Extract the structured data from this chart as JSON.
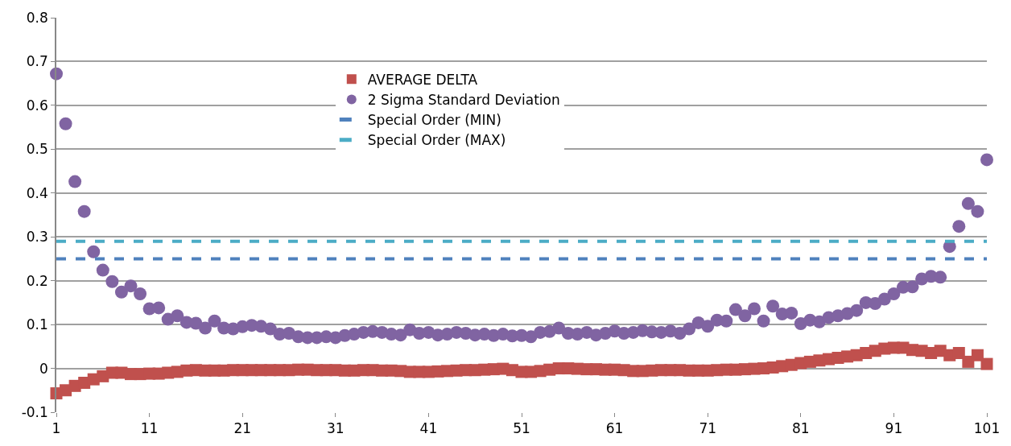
{
  "chart_data": {
    "type": "scatter",
    "x": [
      1,
      2,
      3,
      4,
      5,
      6,
      7,
      8,
      9,
      10,
      11,
      12,
      13,
      14,
      15,
      16,
      17,
      18,
      19,
      20,
      21,
      22,
      23,
      24,
      25,
      26,
      27,
      28,
      29,
      30,
      31,
      32,
      33,
      34,
      35,
      36,
      37,
      38,
      39,
      40,
      41,
      42,
      43,
      44,
      45,
      46,
      47,
      48,
      49,
      50,
      51,
      52,
      53,
      54,
      55,
      56,
      57,
      58,
      59,
      60,
      61,
      62,
      63,
      64,
      65,
      66,
      67,
      68,
      69,
      70,
      71,
      72,
      73,
      74,
      75,
      76,
      77,
      78,
      79,
      80,
      81,
      82,
      83,
      84,
      85,
      86,
      87,
      88,
      89,
      90,
      91,
      92,
      93,
      94,
      95,
      96,
      97,
      98,
      99,
      100,
      101
    ],
    "series": [
      {
        "name": "AVERAGE DELTA",
        "marker": "square",
        "color": "#c0504d",
        "values": [
          -0.057,
          -0.05,
          -0.04,
          -0.033,
          -0.025,
          -0.018,
          -0.01,
          -0.01,
          -0.013,
          -0.013,
          -0.012,
          -0.012,
          -0.01,
          -0.008,
          -0.005,
          -0.004,
          -0.005,
          -0.005,
          -0.005,
          -0.004,
          -0.004,
          -0.004,
          -0.004,
          -0.004,
          -0.004,
          -0.004,
          -0.003,
          -0.003,
          -0.004,
          -0.004,
          -0.004,
          -0.005,
          -0.005,
          -0.004,
          -0.004,
          -0.005,
          -0.005,
          -0.006,
          -0.008,
          -0.008,
          -0.008,
          -0.007,
          -0.006,
          -0.005,
          -0.004,
          -0.004,
          -0.003,
          -0.002,
          -0.001,
          -0.004,
          -0.008,
          -0.008,
          -0.006,
          -0.003,
          0,
          0,
          -0.001,
          -0.002,
          -0.002,
          -0.003,
          -0.003,
          -0.004,
          -0.006,
          -0.006,
          -0.005,
          -0.004,
          -0.004,
          -0.004,
          -0.005,
          -0.005,
          -0.005,
          -0.004,
          -0.003,
          -0.003,
          -0.002,
          -0.001,
          0,
          0.002,
          0.005,
          0.008,
          0.012,
          0.015,
          0.018,
          0.021,
          0.024,
          0.027,
          0.03,
          0.035,
          0.04,
          0.045,
          0.047,
          0.047,
          0.042,
          0.04,
          0.035,
          0.04,
          0.03,
          0.035,
          0.015,
          0.03,
          0.01
        ]
      },
      {
        "name": "2 Sigma Standard Deviation",
        "marker": "circle",
        "color": "#8064a2",
        "values": [
          0.672,
          0.558,
          0.426,
          0.358,
          0.266,
          0.224,
          0.198,
          0.174,
          0.188,
          0.17,
          0.136,
          0.138,
          0.112,
          0.12,
          0.105,
          0.103,
          0.092,
          0.108,
          0.092,
          0.09,
          0.095,
          0.098,
          0.096,
          0.09,
          0.078,
          0.08,
          0.072,
          0.07,
          0.07,
          0.072,
          0.07,
          0.075,
          0.078,
          0.082,
          0.084,
          0.082,
          0.078,
          0.076,
          0.088,
          0.08,
          0.082,
          0.076,
          0.078,
          0.082,
          0.08,
          0.076,
          0.078,
          0.075,
          0.078,
          0.074,
          0.075,
          0.072,
          0.082,
          0.084,
          0.092,
          0.08,
          0.078,
          0.082,
          0.076,
          0.08,
          0.085,
          0.08,
          0.082,
          0.086,
          0.083,
          0.082,
          0.085,
          0.08,
          0.09,
          0.104,
          0.096,
          0.11,
          0.108,
          0.134,
          0.12,
          0.136,
          0.108,
          0.142,
          0.124,
          0.126,
          0.102,
          0.11,
          0.106,
          0.116,
          0.12,
          0.125,
          0.132,
          0.15,
          0.148,
          0.158,
          0.17,
          0.185,
          0.186,
          0.204,
          0.21,
          0.208,
          0.278,
          0.324,
          0.376,
          0.358,
          0.476
        ]
      },
      {
        "name": "Special Order (MIN)",
        "type": "line",
        "line_style": "dashed",
        "color": "#4f81bd",
        "values": [
          0.25,
          0.25,
          0.25,
          0.25,
          0.25,
          0.25,
          0.25,
          0.25,
          0.25,
          0.25,
          0.25,
          0.25,
          0.25,
          0.25,
          0.25,
          0.25,
          0.25,
          0.25,
          0.25,
          0.25,
          0.25,
          0.25,
          0.25,
          0.25,
          0.25,
          0.25,
          0.25,
          0.25,
          0.25,
          0.25,
          0.25,
          0.25,
          0.25,
          0.25,
          0.25,
          0.25,
          0.25,
          0.25,
          0.25,
          0.25,
          0.25,
          0.25,
          0.25,
          0.25,
          0.25,
          0.25,
          0.25,
          0.25,
          0.25,
          0.25,
          0.25,
          0.25,
          0.25,
          0.25,
          0.25,
          0.25,
          0.25,
          0.25,
          0.25,
          0.25,
          0.25,
          0.25,
          0.25,
          0.25,
          0.25,
          0.25,
          0.25,
          0.25,
          0.25,
          0.25,
          0.25,
          0.25,
          0.25,
          0.25,
          0.25,
          0.25,
          0.25,
          0.25,
          0.25,
          0.25,
          0.25,
          0.25,
          0.25,
          0.25,
          0.25,
          0.25,
          0.25,
          0.25,
          0.25,
          0.25,
          0.25,
          0.25,
          0.25,
          0.25,
          0.25,
          0.25,
          0.25,
          0.25,
          0.25,
          0.25,
          0.25
        ]
      },
      {
        "name": "Special Order (MAX)",
        "type": "line",
        "line_style": "dashed",
        "color": "#4bacc6",
        "values": [
          0.29,
          0.29,
          0.29,
          0.29,
          0.29,
          0.29,
          0.29,
          0.29,
          0.29,
          0.29,
          0.29,
          0.29,
          0.29,
          0.29,
          0.29,
          0.29,
          0.29,
          0.29,
          0.29,
          0.29,
          0.29,
          0.29,
          0.29,
          0.29,
          0.29,
          0.29,
          0.29,
          0.29,
          0.29,
          0.29,
          0.29,
          0.29,
          0.29,
          0.29,
          0.29,
          0.29,
          0.29,
          0.29,
          0.29,
          0.29,
          0.29,
          0.29,
          0.29,
          0.29,
          0.29,
          0.29,
          0.29,
          0.29,
          0.29,
          0.29,
          0.29,
          0.29,
          0.29,
          0.29,
          0.29,
          0.29,
          0.29,
          0.29,
          0.29,
          0.29,
          0.29,
          0.29,
          0.29,
          0.29,
          0.29,
          0.29,
          0.29,
          0.29,
          0.29,
          0.29,
          0.29,
          0.29,
          0.29,
          0.29,
          0.29,
          0.29,
          0.29,
          0.29,
          0.29,
          0.29,
          0.29,
          0.29,
          0.29,
          0.29,
          0.29,
          0.29,
          0.29,
          0.29,
          0.29,
          0.29,
          0.29,
          0.29,
          0.29,
          0.29,
          0.29,
          0.29,
          0.29,
          0.29,
          0.29,
          0.29,
          0.29
        ]
      }
    ],
    "xlim": [
      1,
      101
    ],
    "xticks": [
      1,
      11,
      21,
      31,
      41,
      51,
      61,
      71,
      81,
      91,
      101
    ],
    "ylim": [
      -0.1,
      0.8
    ],
    "yticks": [
      -0.1,
      0,
      0.1,
      0.2,
      0.3,
      0.4,
      0.5,
      0.6,
      0.7,
      0.8
    ],
    "grid": "y",
    "legend": "top"
  }
}
